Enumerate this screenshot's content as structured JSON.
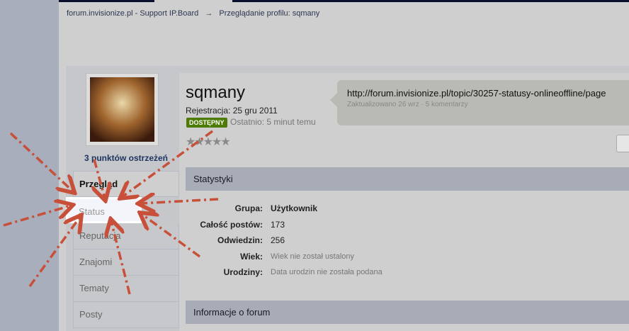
{
  "breadcrumb": {
    "home": "forum.invisionize.pl - Support IP.Board",
    "arrow": "→",
    "current": "Przeglądanie profilu: sqmany"
  },
  "profile": {
    "name": "sqmany",
    "registration": "Rejestracja: 25 gru 2011",
    "status_badge": "DOSTĘPNY",
    "last_seen": "Ostatnio: 5 minut temu",
    "rating_stars": 0,
    "warnings": "3 punktów ostrzeżeń"
  },
  "status_update": {
    "text": "http://forum.invisionize.pl/topic/30257-statusy-onlineoffline/page",
    "meta": "Zaktualizowano 26 wrz · 5 komentarzy"
  },
  "tabs": [
    {
      "label": "Przegląd"
    },
    {
      "label": "Status"
    },
    {
      "label": "Reputacja"
    },
    {
      "label": "Znajomi"
    },
    {
      "label": "Tematy"
    },
    {
      "label": "Posty"
    }
  ],
  "stats": {
    "title": "Statystyki",
    "rows": [
      {
        "label": "Grupa:",
        "value": "Użytkownik"
      },
      {
        "label": "Całość postów:",
        "value": "173"
      },
      {
        "label": "Odwiedzin:",
        "value": "256"
      },
      {
        "label": "Wiek:",
        "value": "Wiek nie został ustalony"
      },
      {
        "label": "Urodziny:",
        "value": "Data urodzin nie została podana"
      }
    ]
  },
  "forum_info": {
    "title": "Informacje o forum"
  },
  "colors": {
    "badge": "#4e7b06",
    "annotation_arrows": "#c8503a"
  }
}
